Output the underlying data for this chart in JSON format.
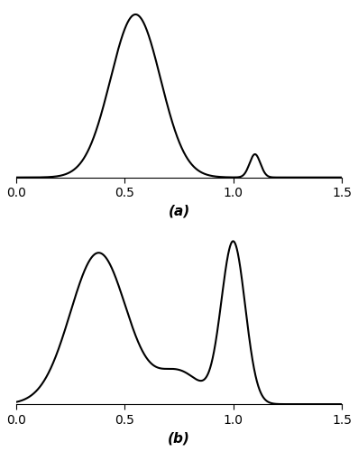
{
  "subplot_a": {
    "label": "(a)",
    "xlim": [
      0.0,
      1.5
    ],
    "xticks": [
      0.0,
      0.5,
      1.0,
      1.5
    ],
    "components": [
      {
        "mean": 0.55,
        "std": 0.115,
        "weight": 0.97
      },
      {
        "mean": 1.1,
        "std": 0.025,
        "weight": 0.03
      }
    ]
  },
  "subplot_b": {
    "label": "(b)",
    "xlim": [
      0.0,
      1.5
    ],
    "xticks": [
      0.0,
      0.5,
      1.0,
      1.5
    ],
    "components": [
      {
        "mean": 0.38,
        "std": 0.13,
        "weight": 0.62
      },
      {
        "mean": 0.75,
        "std": 0.1,
        "weight": 0.1
      },
      {
        "mean": 1.0,
        "std": 0.055,
        "weight": 0.28
      }
    ]
  },
  "line_color": "#000000",
  "line_width": 1.5,
  "background_color": "#ffffff",
  "fig_background": "#ffffff",
  "label_fontsize": 11,
  "tick_fontsize": 10
}
